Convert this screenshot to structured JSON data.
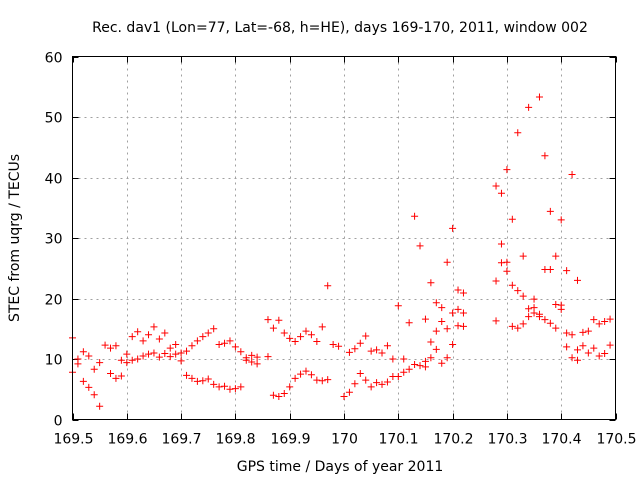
{
  "chart_data": {
    "type": "scatter",
    "title": "Rec. dav1 (Lon=77, Lat=-68, h=HE), days 169-170, 2011, window 002",
    "xlabel": "GPS time / Days of year 2011",
    "ylabel": "STEC from uqrg / TECUs",
    "xlim": [
      169.5,
      170.5
    ],
    "ylim": [
      0,
      60
    ],
    "xticks": [
      169.5,
      169.6,
      169.7,
      169.8,
      169.9,
      170,
      170.1,
      170.2,
      170.3,
      170.4,
      170.5
    ],
    "xtick_labels": [
      "169.5",
      "169.6",
      "169.7",
      "169.8",
      "169.9",
      "170",
      "170.1",
      "170.2",
      "170.3",
      "170.4",
      "170.5"
    ],
    "yticks": [
      0,
      10,
      20,
      30,
      40,
      50,
      60
    ],
    "ytick_labels": [
      "0",
      "10",
      "20",
      "30",
      "40",
      "50",
      "60"
    ],
    "grid": true,
    "marker": "plus",
    "color": "#ff0000",
    "series": [
      {
        "x": [
          169.5,
          169.51,
          169.52,
          169.53,
          169.54,
          169.55,
          169.56,
          169.57,
          169.58,
          169.59,
          169.6,
          169.61,
          169.62,
          169.63,
          169.64,
          169.65,
          169.66,
          169.67,
          169.68,
          169.69,
          169.7,
          169.71,
          169.72,
          169.73,
          169.74,
          169.75,
          169.76,
          169.77,
          169.78,
          169.79,
          169.8,
          169.81,
          169.82,
          169.83,
          169.84,
          169.86,
          169.87,
          169.88,
          169.89,
          169.9,
          169.91,
          169.92,
          169.93,
          169.94,
          169.95,
          169.96,
          169.97,
          169.98,
          169.99,
          170.01,
          170.02,
          170.03,
          170.04,
          170.05,
          170.06,
          170.07,
          170.08,
          170.09,
          170.1,
          170.11,
          170.12,
          170.13,
          170.14,
          170.15,
          170.16,
          170.17,
          170.18,
          170.19,
          170.2,
          170.21,
          170.22,
          170.28,
          170.29,
          170.3,
          170.31,
          170.32,
          170.33,
          170.34,
          170.35,
          170.36,
          170.37,
          170.38,
          170.39,
          170.4,
          170.41,
          170.42,
          170.43,
          170.44,
          170.45,
          170.46,
          170.47,
          170.48,
          170.49
        ],
        "y": [
          13.5,
          10.0,
          11.2,
          10.5,
          8.3,
          9.4,
          12.3,
          11.8,
          12.2,
          9.8,
          10.8,
          13.7,
          14.5,
          13.0,
          14.0,
          15.3,
          13.3,
          14.3,
          11.8,
          12.4,
          11.0,
          11.3,
          12.2,
          13.0,
          13.7,
          14.3,
          15.0,
          12.4,
          12.6,
          13.0,
          12.0,
          11.2,
          10.2,
          10.6,
          10.3,
          16.5,
          15.1,
          16.4,
          14.3,
          13.4,
          12.9,
          13.7,
          14.6,
          14.0,
          12.9,
          15.3,
          22.1,
          12.4,
          12.1,
          11.1,
          11.7,
          12.6,
          13.8,
          11.3,
          11.5,
          11.0,
          12.2,
          10.0,
          18.8,
          10.0,
          16.0,
          33.6,
          28.7,
          16.6,
          22.6,
          19.3,
          18.5,
          26.0,
          31.6,
          21.4,
          20.9,
          38.6,
          37.4,
          41.3,
          33.1,
          47.4,
          27.0,
          51.6,
          19.9,
          53.3,
          43.6,
          34.4,
          27.0,
          33.0,
          24.6,
          40.5,
          23.0,
          14.4,
          14.6,
          16.5,
          15.8,
          16.2,
          16.6
        ]
      },
      {
        "x": [
          169.5,
          169.51,
          169.52,
          169.53,
          169.54,
          169.55,
          169.57,
          169.58,
          169.59,
          169.6,
          169.61,
          169.62,
          169.63,
          169.64,
          169.65,
          169.66,
          169.67,
          169.68,
          169.69,
          169.7,
          169.71,
          169.72,
          169.73,
          169.74,
          169.75,
          169.76,
          169.77,
          169.78,
          169.79,
          169.8,
          169.81,
          169.82,
          169.83,
          169.84,
          169.86,
          169.87,
          169.88,
          169.89,
          169.9,
          169.91,
          169.92,
          169.93,
          169.94,
          169.95,
          169.96,
          169.97,
          170.0,
          170.01,
          170.02,
          170.03,
          170.04,
          170.05,
          170.06,
          170.07,
          170.08,
          170.09,
          170.1,
          170.11,
          170.12,
          170.13,
          170.14,
          170.15,
          170.16,
          170.17,
          170.18,
          170.19,
          170.2,
          170.21,
          170.22,
          170.28,
          170.29,
          170.3,
          170.31,
          170.32,
          170.33,
          170.34,
          170.35,
          170.36,
          170.37,
          170.38,
          170.39,
          170.4,
          170.41,
          170.42,
          170.43,
          170.44,
          170.45,
          170.46,
          170.47,
          170.48,
          170.49
        ],
        "y": [
          7.8,
          9.2,
          6.3,
          5.3,
          4.1,
          2.2,
          7.6,
          6.8,
          7.2,
          9.4,
          9.8,
          10.0,
          10.5,
          10.8,
          11.0,
          10.3,
          10.9,
          10.4,
          10.8,
          9.7,
          7.3,
          6.8,
          6.3,
          6.4,
          6.7,
          5.8,
          5.4,
          5.5,
          5.0,
          5.1,
          5.4,
          9.8,
          9.5,
          9.2,
          10.4,
          4.0,
          3.8,
          4.3,
          5.4,
          6.8,
          7.5,
          8.0,
          7.4,
          6.5,
          6.4,
          6.6,
          3.8,
          4.5,
          5.9,
          7.6,
          6.5,
          5.4,
          6.1,
          5.8,
          6.2,
          7.1,
          7.1,
          7.8,
          8.3,
          9.1,
          8.9,
          8.7,
          10.2,
          11.6,
          9.3,
          10.2,
          12.4,
          15.5,
          17.6,
          22.9,
          25.9,
          24.5,
          22.2,
          21.3,
          20.4,
          18.3,
          17.6,
          17.4,
          16.5,
          15.9,
          15.1,
          18.2,
          12.0,
          14.0,
          11.5,
          12.2,
          11.0,
          11.8,
          10.5,
          10.9,
          12.3
        ]
      },
      {
        "x": [
          170.15,
          170.16,
          170.17,
          170.18,
          170.19,
          170.2,
          170.21,
          170.22,
          170.28,
          170.29,
          170.3,
          170.31,
          170.32,
          170.33,
          170.34,
          170.35,
          170.36,
          170.37,
          170.38,
          170.39,
          170.4,
          170.41,
          170.42,
          170.43
        ],
        "y": [
          9.6,
          12.8,
          14.6,
          16.2,
          15.0,
          17.6,
          18.2,
          15.4,
          16.3,
          29.0,
          26.0,
          15.4,
          15.1,
          15.8,
          17.0,
          18.5,
          17.0,
          24.8,
          24.8,
          19.0,
          18.9,
          14.3,
          10.2,
          9.8
        ]
      }
    ]
  }
}
